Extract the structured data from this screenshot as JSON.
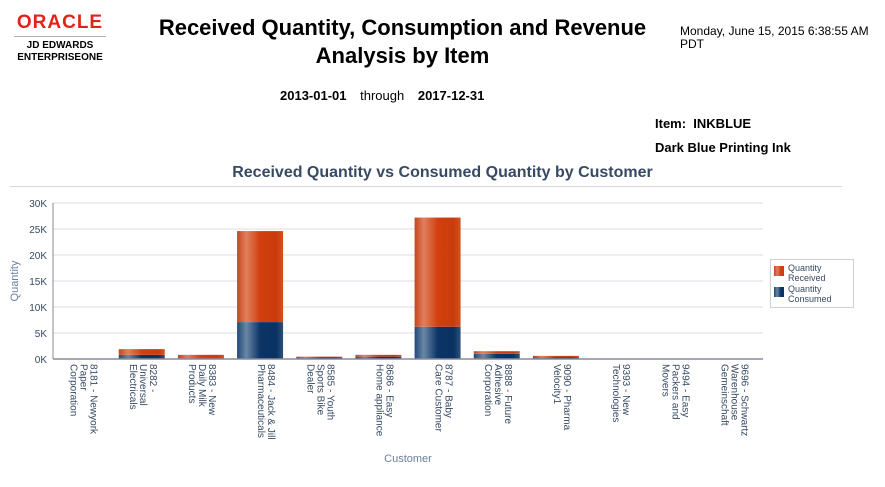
{
  "header": {
    "logo": {
      "brand": "ORACLE",
      "line1": "JD EDWARDS",
      "line2": "ENTERPRISEONE"
    },
    "title": "Received Quantity, Consumption and Revenue Analysis by Item",
    "timestamp": "Monday, June 15, 2015 6:38:55 AM PDT",
    "date_from": "2013-01-01",
    "date_through_label": "through",
    "date_to": "2017-12-31",
    "item_label": "Item:",
    "item_code": "INKBLUE",
    "item_description": "Dark Blue Printing Ink"
  },
  "colors": {
    "received": "#d0400f",
    "consumed": "#0d3a6a",
    "axis_text": "#384a63",
    "grid": "#dcdce6"
  },
  "chart_data": {
    "type": "bar",
    "stacked": true,
    "title": "Received Quantity vs Consumed Quantity by Customer",
    "xlabel": "Customer",
    "ylabel": "Quantity",
    "ylim": [
      0,
      30000
    ],
    "yticks": [
      0,
      5000,
      10000,
      15000,
      20000,
      25000,
      30000
    ],
    "ytick_labels": [
      "0K",
      "5K",
      "10K",
      "15K",
      "20K",
      "25K",
      "30K"
    ],
    "grid": true,
    "legend_position": "right",
    "categories": [
      "8181 - Newyork Paper Corporation",
      "8282 - Universal Electricals",
      "8383 - New Daily Milk Products",
      "8484 - Jack & Jill Pharmaceuticals",
      "8585 - Youth Sports Bike Dealer",
      "8686 - Easy Home appliance",
      "8787 - Baby Care Customer",
      "8888 - Future Adhesive Corporation",
      "9090 - Pharma Velocity1",
      "9393 - New Technologies",
      "9494 - Easy Packers and Movers",
      "9696 - Schwartz Warenhouse Gemeinschaft"
    ],
    "category_lines": [
      [
        "8181 - Newyork",
        "Paper",
        "Corporation"
      ],
      [
        "8282 -",
        "Universal",
        "Electricals"
      ],
      [
        "8383 - New",
        "Daily Milk",
        "Products"
      ],
      [
        "8484 - Jack & Jill",
        "Pharmaceuticals"
      ],
      [
        "8585 - Youth",
        "Sports Bike",
        "Dealer"
      ],
      [
        "8686 - Easy",
        "Home appliance"
      ],
      [
        "8787 - Baby",
        "Care Customer"
      ],
      [
        "8888 - Future",
        "Adhesive",
        "Corporation"
      ],
      [
        "9090 - Pharma",
        "Velocity1"
      ],
      [
        "9393 - New",
        "Technologies"
      ],
      [
        "9494 - Easy",
        "Packers and",
        "Movers"
      ],
      [
        "9696 - Schwartz",
        "Warenhouse",
        "Gemeinschaft"
      ]
    ],
    "series": [
      {
        "name": "Quantity Consumed",
        "values": [
          0,
          800,
          0,
          7100,
          300,
          450,
          6200,
          1000,
          300,
          0,
          0,
          0
        ]
      },
      {
        "name": "Quantity Received",
        "values": [
          0,
          1100,
          800,
          17500,
          150,
          350,
          21000,
          500,
          300,
          0,
          0,
          0
        ]
      }
    ],
    "legend": [
      "Quantity Received",
      "Quantity Consumed"
    ]
  }
}
